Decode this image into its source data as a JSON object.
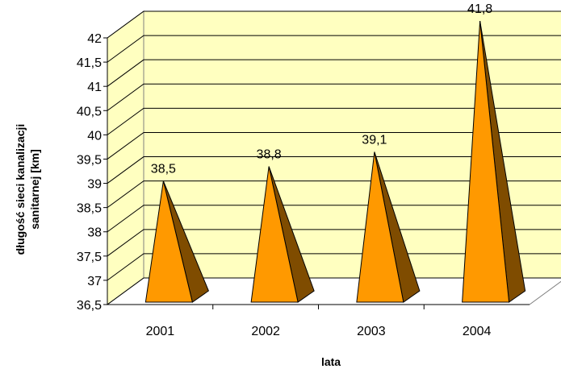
{
  "chart_data": {
    "type": "bar",
    "categories": [
      "2001",
      "2002",
      "2003",
      "2004"
    ],
    "values": [
      38.5,
      38.8,
      39.1,
      41.8
    ],
    "data_labels": [
      "38,5",
      "38,8",
      "39,1",
      "41,8"
    ],
    "xlabel": "lata",
    "ylabel_line1": "długość sieci kanalizacji",
    "ylabel_line2": "sanitarnej [km]",
    "ylim": [
      36.5,
      42
    ],
    "yticks": [
      36.5,
      37,
      37.5,
      38,
      38.5,
      39,
      39.5,
      40,
      40.5,
      41,
      41.5,
      42
    ],
    "ytick_labels": [
      "36,5",
      "37",
      "37,5",
      "38",
      "38,5",
      "39",
      "39,5",
      "40",
      "40,5",
      "41",
      "41,5",
      "42"
    ],
    "bar_shape": "pyramid",
    "grid": true,
    "legend": "none",
    "colors": {
      "bar_front": "#FF9900",
      "bar_side": "#7F4C00",
      "wall": "#FFFFC0",
      "floor": "#FFFFFF",
      "grid": "#000000",
      "wall_edge": "#808080"
    }
  }
}
